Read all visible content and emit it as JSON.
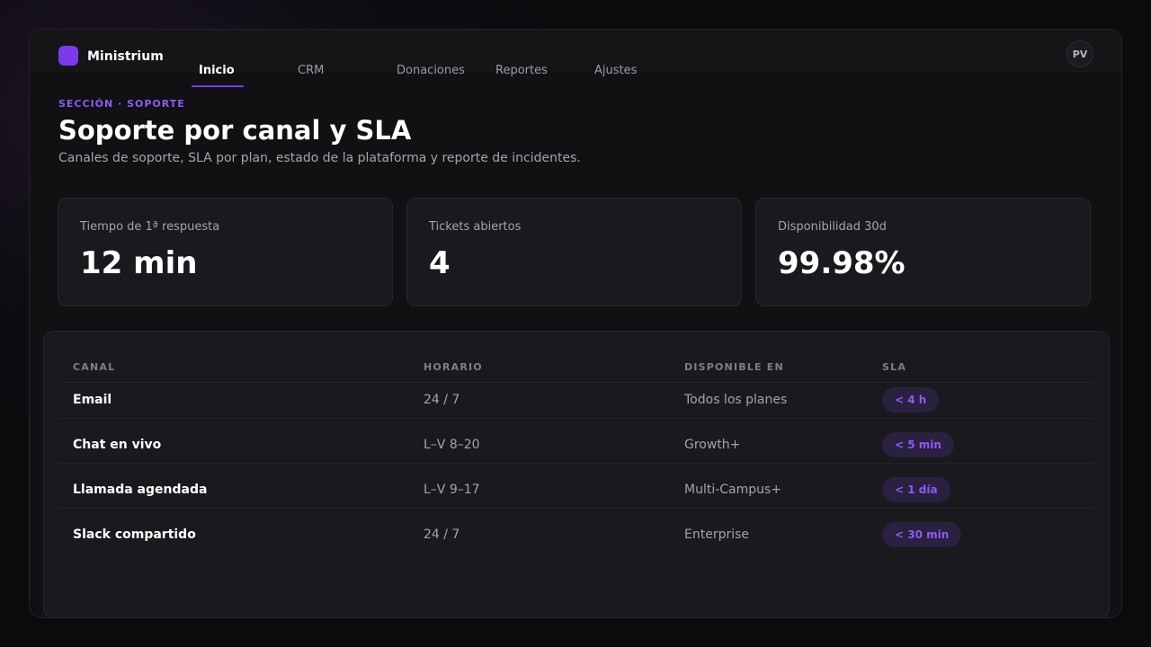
{
  "app": {
    "brand": "Ministrium",
    "avatar_initials": "PV",
    "accent": "#7c3aed"
  },
  "nav": {
    "tabs": [
      {
        "label": "Inicio",
        "active": true
      },
      {
        "label": "CRM"
      },
      {
        "label": "Donaciones"
      },
      {
        "label": "Reportes"
      },
      {
        "label": "Ajustes"
      }
    ]
  },
  "header": {
    "eyebrow": "SECCIÓN · SOPORTE",
    "title": "Soporte por canal y SLA",
    "subtitle": "Canales de soporte, SLA por plan, estado de la plataforma y reporte de incidentes."
  },
  "stats": [
    {
      "label": "Tiempo de 1ª respuesta",
      "value": "12 min"
    },
    {
      "label": "Tickets abiertos",
      "value": "4"
    },
    {
      "label": "Disponibilidad 30d",
      "value": "99.98%"
    }
  ],
  "table": {
    "columns": [
      "CANAL",
      "HORARIO",
      "DISPONIBLE EN",
      "SLA"
    ],
    "rows": [
      {
        "canal": "Email",
        "horario": "24 / 7",
        "disponible": "Todos los planes",
        "sla": "< 4 h"
      },
      {
        "canal": "Chat en vivo",
        "horario": "L–V 8–20",
        "disponible": "Growth+",
        "sla": "< 5 min"
      },
      {
        "canal": "Llamada agendada",
        "horario": "L–V 9–17",
        "disponible": "Multi-Campus+",
        "sla": "< 1 día"
      },
      {
        "canal": "Slack compartido",
        "horario": "24 / 7",
        "disponible": "Enterprise",
        "sla": "< 30 min"
      }
    ]
  }
}
